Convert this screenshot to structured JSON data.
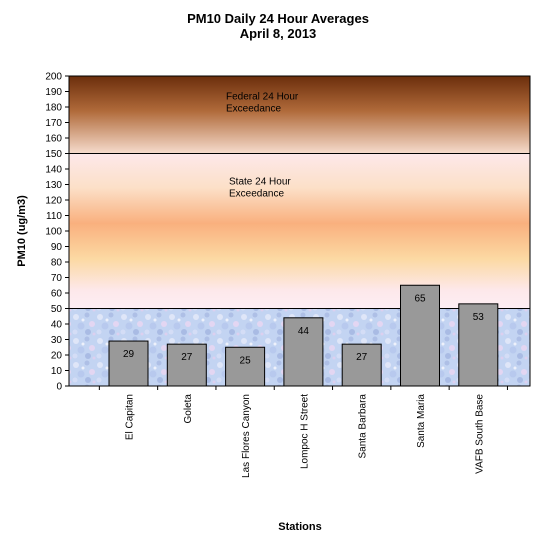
{
  "chart_data": {
    "type": "bar",
    "title": "PM10 Daily 24 Hour Averages",
    "subtitle": "April 8, 2013",
    "xlabel": "Stations",
    "ylabel": "PM10 (ug/m3)",
    "ylim": [
      0,
      200
    ],
    "ytick_step": 10,
    "grid": false,
    "categories": [
      "El Capitan",
      "Goleta",
      "Las Flores Canyon",
      "Lompoc H Street",
      "Santa Barbara",
      "Santa Maria",
      "VAFB South Base"
    ],
    "values": [
      29,
      27,
      25,
      44,
      27,
      65,
      53
    ],
    "bar_color": "#999999",
    "zones": [
      {
        "from": 0,
        "to": 50,
        "label": ""
      },
      {
        "from": 50,
        "to": 150,
        "label_lines": [
          "State 24 Hour",
          "Exceedance"
        ],
        "label_y": 130
      },
      {
        "from": 150,
        "to": 200,
        "label_lines": [
          "Federal 24 Hour",
          "Exceedance"
        ],
        "label_y": 185
      }
    ]
  }
}
